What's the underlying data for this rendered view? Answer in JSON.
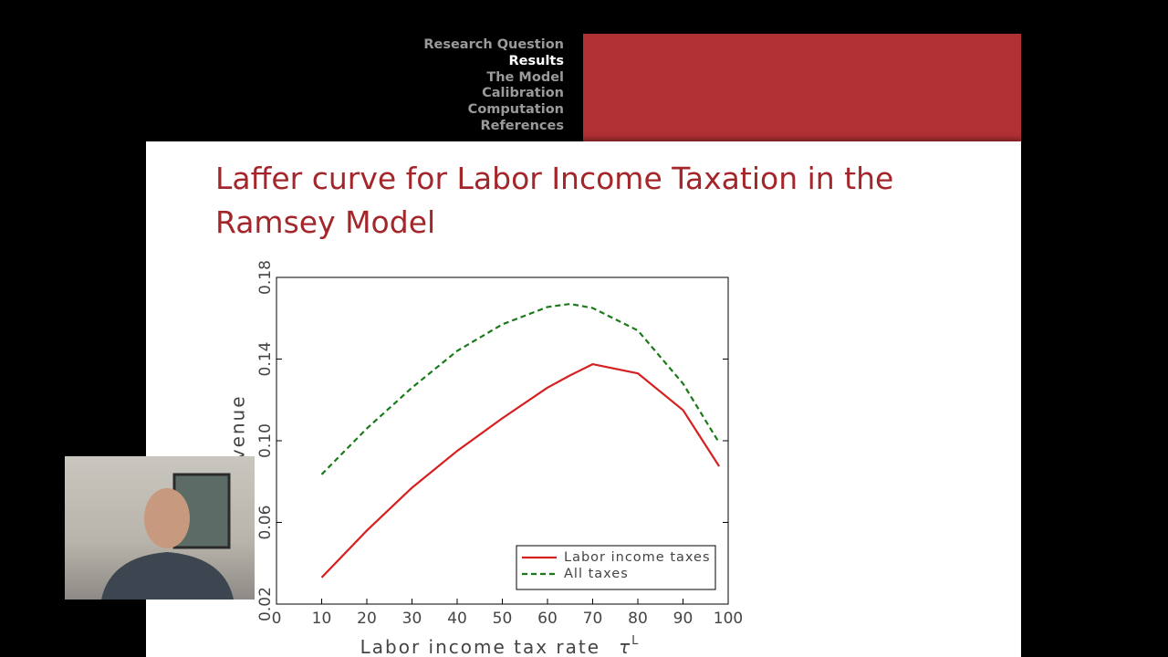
{
  "nav": {
    "items": [
      "Research Question",
      "Results",
      "The Model",
      "Calibration",
      "Computation",
      "References"
    ],
    "current": 1
  },
  "chart_data": {
    "type": "line",
    "title": "Laffer curve for Labor Income Taxation in the Ramsey Model",
    "xlabel": "Labor income tax rate",
    "xlabel_symbol": "τ",
    "xlabel_sup": "L",
    "ylabel": "Revenue",
    "x": [
      10,
      20,
      30,
      40,
      50,
      60,
      65,
      70,
      80,
      90,
      98
    ],
    "series": [
      {
        "name": "Labor income taxes",
        "color": "#d62020",
        "dash": false,
        "values": [
          0.033,
          0.056,
          0.077,
          0.095,
          0.111,
          0.126,
          0.132,
          0.1375,
          0.133,
          0.115,
          0.0875
        ]
      },
      {
        "name": "All taxes",
        "color": "#1a7a1a",
        "dash": true,
        "values": [
          0.0835,
          0.106,
          0.126,
          0.144,
          0.157,
          0.1655,
          0.167,
          0.165,
          0.154,
          0.128,
          0.099
        ]
      }
    ],
    "xlim": [
      0,
      100
    ],
    "xticks": [
      0,
      10,
      20,
      30,
      40,
      50,
      60,
      70,
      80,
      90,
      100
    ],
    "ylim": [
      0.02,
      0.18
    ],
    "yticks": [
      0.02,
      0.06,
      0.1,
      0.14,
      0.18
    ],
    "legend": "lower right"
  }
}
